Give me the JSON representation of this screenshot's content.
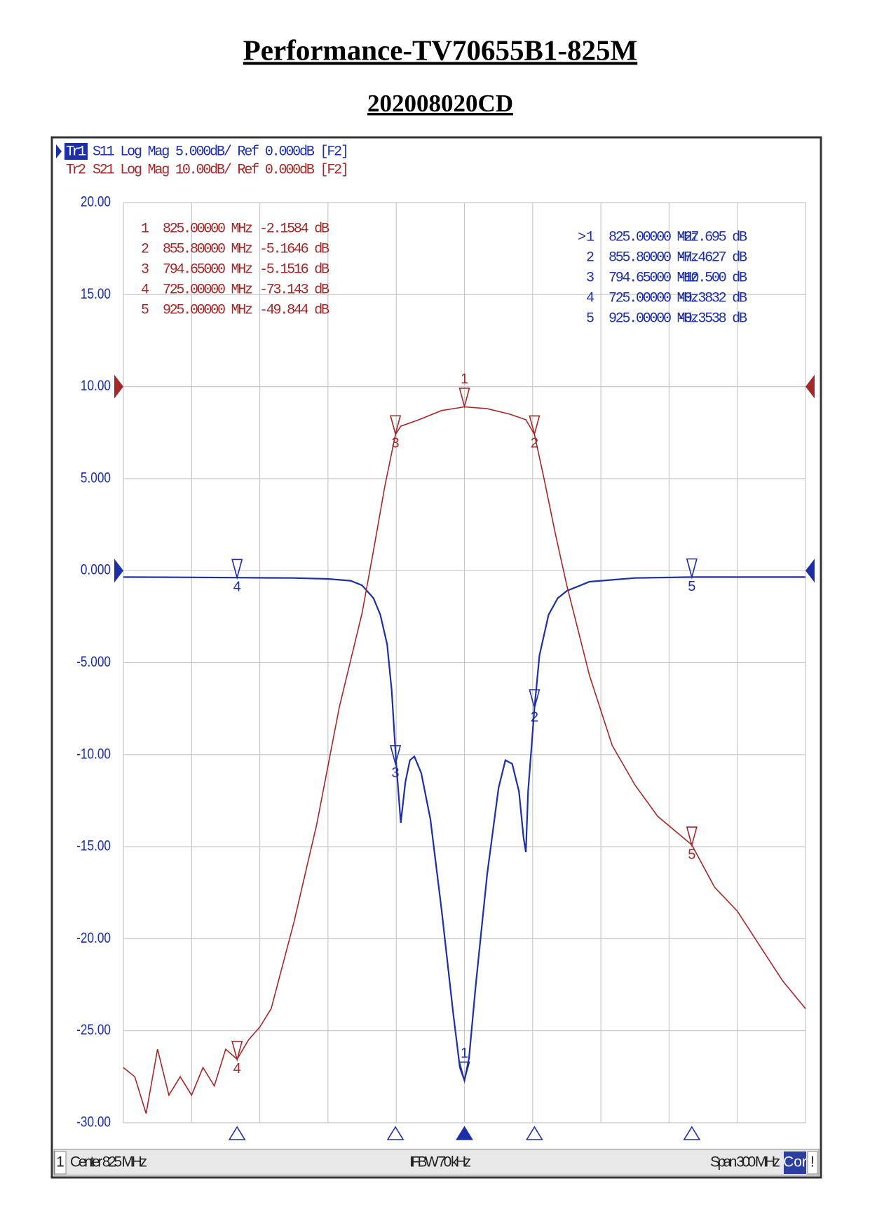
{
  "chart_data": {
    "type": "line",
    "title": "Performance-TV70655B1-825M",
    "subtitle": "202008020CD",
    "xlim": [
      675,
      975
    ],
    "xticks": [
      675,
      705,
      735,
      765,
      795,
      825,
      855,
      885,
      915,
      945,
      975
    ],
    "ylim": [
      -30,
      20
    ],
    "yticks": [
      {
        "value": 20,
        "label": "20.00"
      },
      {
        "value": 15,
        "label": "15.00"
      },
      {
        "value": 10,
        "label": "10.00"
      },
      {
        "value": 5,
        "label": "5.000"
      },
      {
        "value": 0,
        "label": "0.000"
      },
      {
        "value": -5,
        "label": "-5.000"
      },
      {
        "value": -10,
        "label": "-10.00"
      },
      {
        "value": -15,
        "label": "-15.00"
      },
      {
        "value": -20,
        "label": "-20.00"
      },
      {
        "value": -25,
        "label": "-25.00"
      },
      {
        "value": -30,
        "label": "-30.00"
      }
    ],
    "y2lim": [
      -80,
      20
    ],
    "grid": true,
    "series": [
      {
        "name": "Tr1",
        "header": "S11 Log Mag 5.000dB/ Ref 0.000dB [F2]",
        "color": "#1c2fa6",
        "axis": "y",
        "x": [
          675,
          700,
          725,
          750,
          765,
          775,
          780,
          785,
          788,
          791,
          793,
          795,
          797,
          799,
          801,
          803,
          806,
          810,
          815,
          820,
          823,
          825,
          827,
          830,
          835,
          840,
          843,
          846,
          849,
          851,
          852,
          853,
          855.8,
          858,
          862,
          866,
          870,
          880,
          900,
          925,
          950,
          975
        ],
        "values": [
          -0.35,
          -0.36,
          -0.38,
          -0.4,
          -0.45,
          -0.55,
          -0.8,
          -1.5,
          -2.4,
          -4,
          -6.5,
          -10.5,
          -13.7,
          -11.5,
          -10.3,
          -10.1,
          -11,
          -13.5,
          -18.5,
          -24,
          -27,
          -27.7,
          -26.5,
          -22.5,
          -16.5,
          -11.8,
          -10.3,
          -10.5,
          -12,
          -14.5,
          -15.3,
          -12,
          -7.46,
          -4.6,
          -2.4,
          -1.5,
          -1.1,
          -0.6,
          -0.4,
          -0.35,
          -0.35,
          -0.35
        ],
        "marker_ids": [
          "1",
          "2",
          "3",
          "4",
          "5"
        ],
        "marker_table_ids": [
          ">1",
          "2",
          "3",
          "4",
          "5"
        ],
        "marker_x": [
          825,
          855.8,
          794.65,
          725,
          925
        ],
        "marker_x_labels": [
          "825.00000 MHz",
          "855.80000 MHz",
          "794.65000 MHz",
          "725.00000 MHz",
          "925.00000 MHz"
        ],
        "marker_values": [
          -27.695,
          -7.4627,
          -10.5,
          -0.3832,
          -0.3538
        ],
        "marker_value_labels": [
          "-27.695 dB",
          "-7.4627 dB",
          "-10.500 dB",
          "-0.3832 dB",
          "-0.3538 dB"
        ]
      },
      {
        "name": "Tr2",
        "header": "S21 Log Mag 10.00dB/ Ref 0.000dB [F2]",
        "color": "#a52828",
        "axis": "y2",
        "x": [
          675,
          680,
          685,
          690,
          695,
          700,
          705,
          710,
          715,
          720,
          725,
          730,
          735,
          740,
          750,
          760,
          770,
          780,
          785,
          790,
          794.65,
          797,
          805,
          815,
          825,
          835,
          845,
          852,
          855.8,
          860,
          865,
          870,
          880,
          890,
          900,
          910,
          925,
          935,
          945,
          955,
          965,
          975
        ],
        "values": [
          -74,
          -75,
          -79,
          -72,
          -77,
          -75,
          -77,
          -74,
          -76,
          -72,
          -73.1,
          -71,
          -69.6,
          -67.6,
          -58.2,
          -47.6,
          -34.8,
          -24.6,
          -17.8,
          -10.8,
          -5.2,
          -4.3,
          -3.6,
          -2.6,
          -2.2,
          -2.4,
          -3,
          -3.6,
          -5.2,
          -10,
          -16,
          -21.6,
          -31.4,
          -39,
          -43.3,
          -46.7,
          -49.8,
          -54.4,
          -57,
          -60.8,
          -64.6,
          -67.6
        ],
        "marker_ids": [
          "1",
          "2",
          "3",
          "4",
          "5"
        ],
        "marker_table_ids": [
          "1",
          "2",
          "3",
          "4",
          "5"
        ],
        "marker_x": [
          825,
          855.8,
          794.65,
          725,
          925
        ],
        "marker_x_labels": [
          "825.00000 MHz",
          "855.80000 MHz",
          "794.65000 MHz",
          "725.00000 MHz",
          "925.00000 MHz"
        ],
        "marker_values": [
          -2.1584,
          -5.1646,
          -5.1516,
          -73.143,
          -49.844
        ],
        "marker_value_labels": [
          "-2.1584 dB",
          "-5.1646 dB",
          "-5.1516 dB",
          "-73.143 dB",
          "-49.844 dB"
        ]
      }
    ],
    "footer": {
      "channel": "1",
      "center": "Center 825 MHz",
      "ifbw": "IFBW 70 kHz",
      "span": "Span 300 MHz",
      "correction": "Cor",
      "status": "!"
    }
  }
}
